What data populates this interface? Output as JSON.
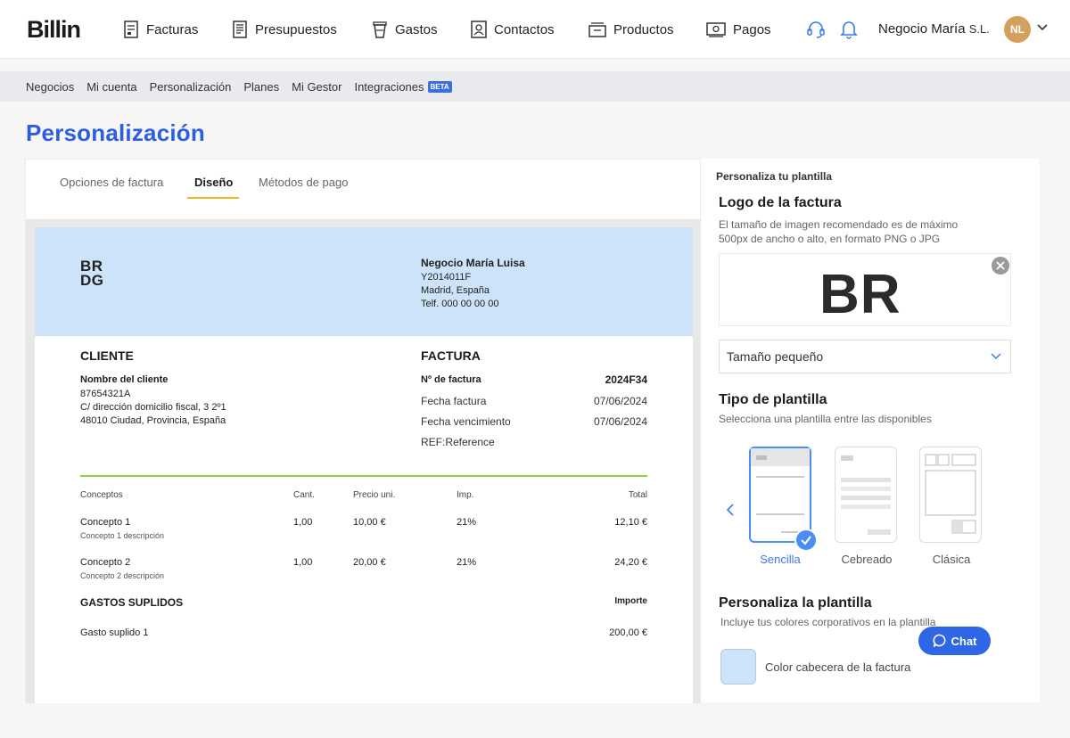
{
  "brand": {
    "name": "Billin"
  },
  "nav": {
    "items": [
      {
        "label": "Facturas",
        "icon": "invoice-icon"
      },
      {
        "label": "Presupuestos",
        "icon": "quote-icon"
      },
      {
        "label": "Gastos",
        "icon": "cup-icon"
      },
      {
        "label": "Contactos",
        "icon": "contact-icon"
      },
      {
        "label": "Productos",
        "icon": "box-icon"
      },
      {
        "label": "Pagos",
        "icon": "money-icon"
      }
    ],
    "business": "Negocio María",
    "business_suffix": "S.L.",
    "avatar": "NL"
  },
  "subnav": {
    "items": [
      "Negocios",
      "Mi cuenta",
      "Personalización",
      "Planes",
      "Mi Gestor",
      "Integraciones"
    ],
    "beta": "BETA"
  },
  "page": {
    "title": "Personalización"
  },
  "tabs": [
    "Opciones de factura",
    "Diseño",
    "Métodos de pago"
  ],
  "invoice": {
    "logo_line1": "BR",
    "logo_line2": "DG",
    "company": {
      "name": "Negocio María Luisa",
      "tax_id": "Y2014011F",
      "city": "Madrid, España",
      "phone": "Telf. 000 00 00 00"
    },
    "client": {
      "heading": "CLIENTE",
      "name": "Nombre del cliente",
      "tax_id": "87654321A",
      "address1": "C/ dirección domicilio fiscal, 3 2º1",
      "address2": "48010 Ciudad, Provincia, España"
    },
    "details": {
      "heading": "FACTURA",
      "number_label": "Nº de factura",
      "number": "2024F34",
      "date_label": "Fecha factura",
      "date": "07/06/2024",
      "due_label": "Fecha vencimiento",
      "due": "07/06/2024",
      "ref": "REF:Reference"
    },
    "columns": [
      "Conceptos",
      "Cant.",
      "Precio uni.",
      "Imp.",
      "Total"
    ],
    "lines": [
      {
        "concept": "Concepto 1",
        "desc": "Concepto 1 descripción",
        "qty": "1,00",
        "price": "10,00 €",
        "tax": "21%",
        "total": "12,10 €"
      },
      {
        "concept": "Concepto 2",
        "desc": "Concepto 2 descripción",
        "qty": "1,00",
        "price": "20,00 €",
        "tax": "21%",
        "total": "24,20 €"
      }
    ],
    "expenses": {
      "heading": "GASTOS SUPLIDOS",
      "amount_label": "Importe",
      "item": "Gasto suplido 1",
      "amount": "200,00 €"
    }
  },
  "panel": {
    "heading": "Personaliza tu plantilla",
    "logo_title": "Logo de la factura",
    "logo_desc1": "El tamaño de imagen recomendado es de máximo",
    "logo_desc2": "500px de ancho o alto, en formato PNG o JPG",
    "logo_text": "BR",
    "size_select": "Tamaño pequeño",
    "template_title": "Tipo de plantilla",
    "template_desc": "Selecciona una plantilla entre las disponibles",
    "templates": [
      "Sencilla",
      "Cebreado",
      "Clásica"
    ],
    "customize_title": "Personaliza la plantilla",
    "customize_desc": "Incluye tus colores corporativos en la plantilla",
    "color_label": "Color cabecera de la factura",
    "header_color": "#cde3f9"
  },
  "chat": {
    "label": "Chat"
  }
}
